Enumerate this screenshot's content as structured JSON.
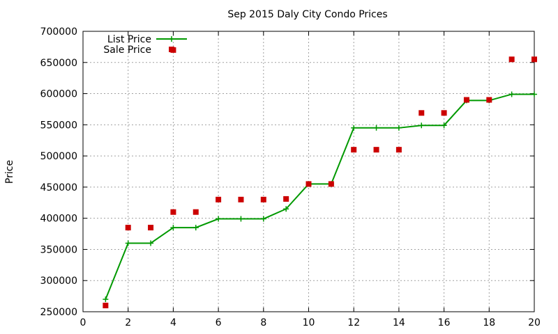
{
  "chart_data": {
    "type": "line",
    "title": "Sep 2015 Daly City Condo Prices",
    "xlabel": "",
    "ylabel": "Price",
    "xlim": [
      0,
      20
    ],
    "ylim": [
      250000,
      700000
    ],
    "x_ticks": [
      "0",
      "2",
      "4",
      "6",
      "8",
      "10",
      "12",
      "14",
      "16",
      "18",
      "20"
    ],
    "y_ticks": [
      "250000",
      "300000",
      "350000",
      "400000",
      "450000",
      "500000",
      "550000",
      "600000",
      "650000",
      "700000"
    ],
    "grid": true,
    "legend_position": "top-left",
    "series": [
      {
        "name": "List Price",
        "style": "line-points",
        "marker": "plus",
        "color": "#009900",
        "x": [
          1,
          2,
          3,
          4,
          5,
          6,
          7,
          8,
          9,
          10,
          11,
          12,
          13,
          14,
          15,
          16,
          17,
          18,
          19,
          20
        ],
        "values": [
          270000,
          360000,
          360000,
          385000,
          385000,
          399000,
          399000,
          399000,
          415000,
          455000,
          455000,
          545000,
          545000,
          545000,
          549000,
          549000,
          589000,
          589000,
          599000,
          599000
        ]
      },
      {
        "name": "Sale Price",
        "style": "points",
        "marker": "square",
        "color": "#cc0000",
        "x": [
          1,
          2,
          3,
          4,
          4,
          5,
          6,
          7,
          8,
          9,
          10,
          11,
          12,
          13,
          14,
          15,
          16,
          17,
          18,
          19,
          20
        ],
        "values": [
          260000,
          385000,
          385000,
          410000,
          670000,
          410000,
          430000,
          430000,
          430000,
          431000,
          455000,
          455000,
          510000,
          510000,
          510000,
          569000,
          569000,
          590000,
          590000,
          655000,
          655000
        ]
      }
    ]
  }
}
